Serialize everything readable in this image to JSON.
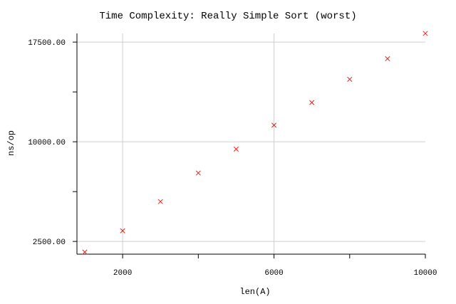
{
  "chart_data": {
    "type": "scatter",
    "title": "Time Complexity: Really Simple Sort (worst)",
    "xlabel": "len(A)",
    "ylabel": "ns/op",
    "x_ticks": [
      {
        "value": 2000,
        "label": "2000",
        "grid": true
      },
      {
        "value": 4000,
        "label": "",
        "grid": false
      },
      {
        "value": 6000,
        "label": "6000",
        "grid": true
      },
      {
        "value": 8000,
        "label": "",
        "grid": false
      },
      {
        "value": 10000,
        "label": "10000",
        "grid": false
      }
    ],
    "y_ticks": [
      {
        "value": 2500,
        "label": "2500.00",
        "grid": true
      },
      {
        "value": 6250,
        "label": "",
        "grid": false
      },
      {
        "value": 10000,
        "label": "10000.00",
        "grid": true
      },
      {
        "value": 13750,
        "label": "",
        "grid": false
      },
      {
        "value": 17500,
        "label": "17500.00",
        "grid": true
      }
    ],
    "xlim": [
      1000,
      10000
    ],
    "ylim": [
      1650,
      18150
    ],
    "marker": "x",
    "color": "#e8201a",
    "grid": true,
    "series": [
      {
        "x": [
          1000,
          2000,
          3000,
          4000,
          5000,
          6000,
          7000,
          8000,
          9000,
          10000
        ],
        "y": [
          1700,
          3300,
          5500,
          7650,
          9450,
          11250,
          12950,
          14700,
          16250,
          18150
        ]
      }
    ]
  }
}
